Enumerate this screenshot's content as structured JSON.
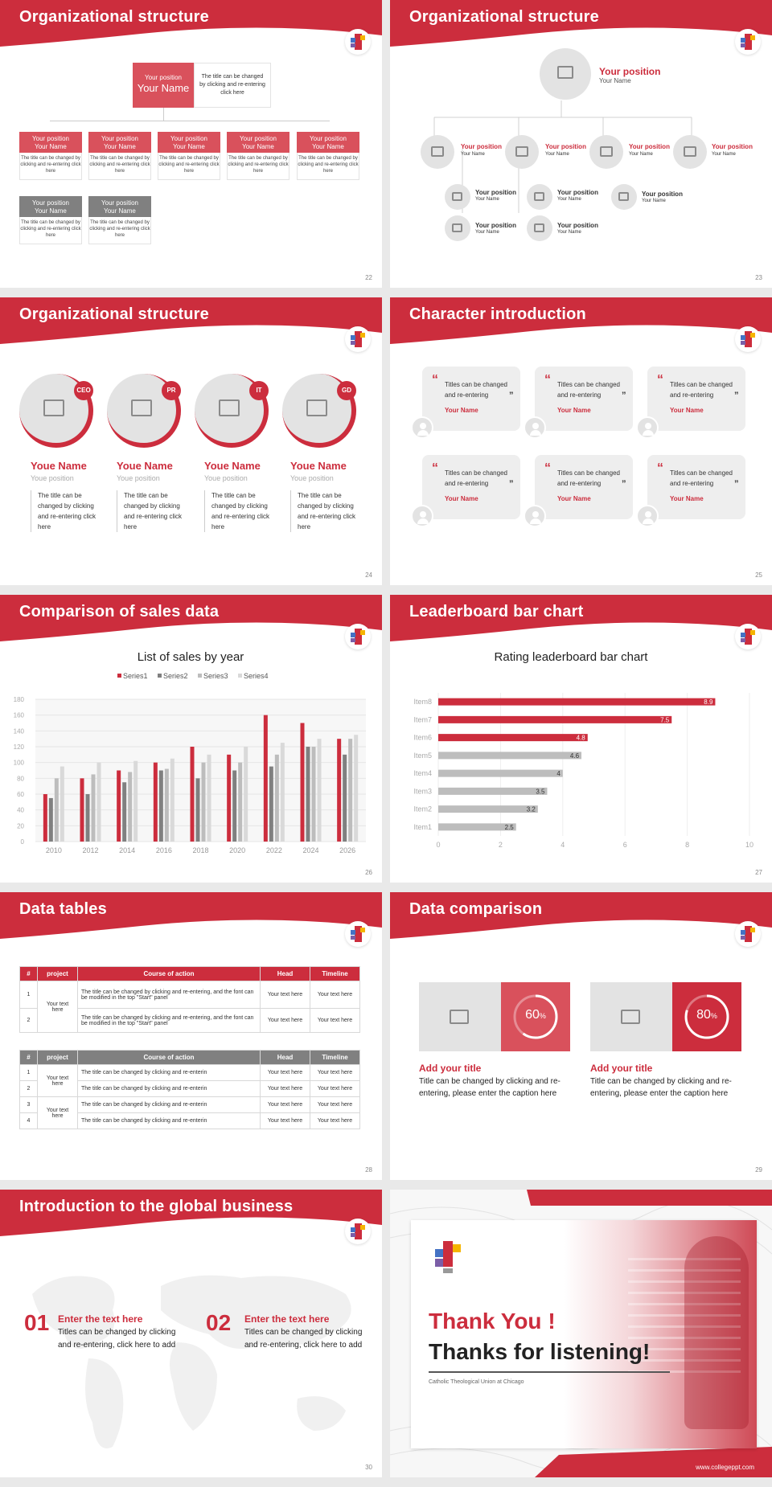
{
  "brand": {
    "red": "#cc2d3d",
    "light_red": "#d9515c",
    "gray": "#808080",
    "light_gray": "#e3e3e3"
  },
  "slides": [
    {
      "title": "Organizational structure",
      "page": "22",
      "top_position": "Your position",
      "top_name": "Your Name",
      "top_desc": "The title can be changed by clicking and re-entering click here",
      "box_position": "Your position",
      "box_name": "Your Name",
      "box_desc": "The title can be changed by clicking and re-entering click here"
    },
    {
      "title": "Organizational structure",
      "page": "23",
      "position": "Your position",
      "name": "Your Name"
    },
    {
      "title": "Organizational structure",
      "page": "24",
      "people": [
        {
          "badge": "CEO",
          "name": "Youe Name",
          "position": "Youe position",
          "desc": "The title can be changed by clicking and re-entering click here"
        },
        {
          "badge": "PR",
          "name": "Youe Name",
          "position": "Youe position",
          "desc": "The title can be changed by clicking and re-entering click here"
        },
        {
          "badge": "IT",
          "name": "Youe Name",
          "position": "Youe position",
          "desc": "The title can be changed by clicking and re-entering click here"
        },
        {
          "badge": "GD",
          "name": "Youe Name",
          "position": "Youe position",
          "desc": "The title can be changed by clicking and re-entering click here"
        }
      ]
    },
    {
      "title": "Character introduction",
      "page": "25",
      "quote": "Titles can be changed and re-entering",
      "name": "Your Name",
      "quote_open": "“",
      "quote_close": "”"
    },
    {
      "title": "Comparison of sales data",
      "page": "26",
      "chart_data": {
        "type": "bar",
        "title": "List of sales by year",
        "categories": [
          "2010",
          "2012",
          "2014",
          "2016",
          "2018",
          "2020",
          "2022",
          "2024",
          "2026"
        ],
        "series": [
          {
            "name": "Series1",
            "color": "#cc2d3d",
            "values": [
              60,
              80,
              90,
              100,
              120,
              110,
              160,
              150,
              130
            ]
          },
          {
            "name": "Series2",
            "color": "#808080",
            "values": [
              55,
              60,
              75,
              90,
              80,
              90,
              95,
              120,
              110
            ]
          },
          {
            "name": "Series3",
            "color": "#bdbdbd",
            "values": [
              80,
              85,
              88,
              92,
              100,
              100,
              110,
              120,
              130
            ]
          },
          {
            "name": "Series4",
            "color": "#d9d9d9",
            "values": [
              95,
              100,
              102,
              105,
              110,
              120,
              125,
              130,
              135
            ]
          }
        ],
        "ylim": [
          0,
          180
        ],
        "yticks": [
          "0",
          "20",
          "40",
          "60",
          "80",
          "100",
          "120",
          "140",
          "160",
          "180"
        ],
        "legend": "top",
        "grid": true
      }
    },
    {
      "title": "Leaderboard bar chart",
      "page": "27",
      "chart_data": {
        "type": "bar",
        "orientation": "horizontal",
        "title": "Rating leaderboard bar chart",
        "categories": [
          "Item8",
          "Item7",
          "Item6",
          "Item5",
          "Item4",
          "Item3",
          "Item2",
          "Item1"
        ],
        "values": [
          8.9,
          7.5,
          4.8,
          4.6,
          4,
          3.5,
          3.2,
          2.5
        ],
        "value_labels": [
          "8.9",
          "7.5",
          "4.8",
          "4.6",
          "4",
          "3.5",
          "3.2",
          "2.5"
        ],
        "colors": [
          "#cc2d3d",
          "#cc2d3d",
          "#cc2d3d",
          "#bdbdbd",
          "#bdbdbd",
          "#bdbdbd",
          "#bdbdbd",
          "#bdbdbd"
        ],
        "xlim": [
          0,
          10
        ],
        "xticks": [
          "0",
          "2",
          "4",
          "6",
          "8",
          "10"
        ],
        "grid": true
      }
    },
    {
      "title": "Data tables",
      "page": "28",
      "headers": [
        "#",
        "project",
        "Course of action",
        "Head",
        "Timeline"
      ],
      "table1": {
        "project": "Your text here",
        "rows": [
          {
            "n": "1",
            "action": "The title can be changed by clicking and re-entering, and the font can be modified in the top \"Start\" panel",
            "head": "Your text here",
            "time": "Your text here"
          },
          {
            "n": "2",
            "action": "The title can be changed by clicking and re-entering, and the font can be modified in the top \"Start\" panel",
            "head": "Your text here",
            "time": "Your text here"
          }
        ]
      },
      "table2": {
        "project": "Your text here",
        "rows": [
          {
            "n": "1",
            "action": "The title can be changed by clicking and re-enterin",
            "head": "Your text here",
            "time": "Your text here"
          },
          {
            "n": "2",
            "action": "The title can be changed by clicking and re-enterin",
            "head": "Your text here",
            "time": "Your text here"
          },
          {
            "n": "3",
            "action": "The title can be changed by clicking and re-enterin",
            "head": "Your text here",
            "time": "Your text here"
          },
          {
            "n": "4",
            "action": "The title can be changed by clicking and re-enterin",
            "head": "Your text here",
            "time": "Your text here"
          }
        ]
      }
    },
    {
      "title": "Data comparison",
      "page": "29",
      "items": [
        {
          "percent": 60,
          "value": "60",
          "unit": "%",
          "title": "Add your title",
          "desc": "Title can be changed by clicking and re-entering, please enter the caption here"
        },
        {
          "percent": 80,
          "value": "80",
          "unit": "%",
          "title": "Add your title",
          "desc": "Title can be changed by clicking and re-entering, please enter the caption here"
        }
      ]
    },
    {
      "title": "Introduction to the global business",
      "page": "30",
      "items": [
        {
          "num": "01",
          "title": "Enter the text here",
          "desc": "Titles can be changed by clicking and re-entering, click here to add"
        },
        {
          "num": "02",
          "title": "Enter the text here",
          "desc": "Titles can be changed by clicking and re-entering, click here to add"
        }
      ]
    },
    {
      "thanks1": "Thank You !",
      "thanks2": "Thanks for listening!",
      "school": "Catholic Theological Union at Chicago",
      "url": "www.collegeppt.com"
    }
  ]
}
